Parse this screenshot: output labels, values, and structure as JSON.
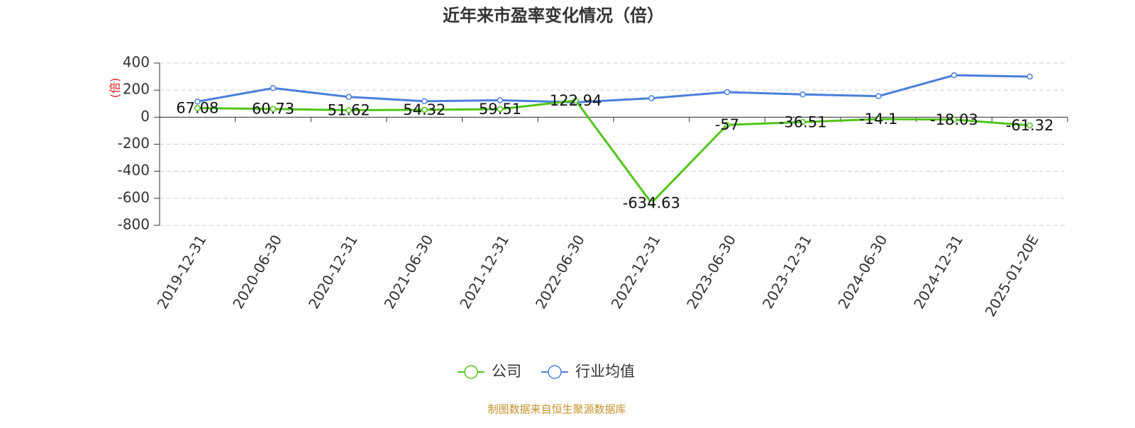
{
  "chart_data": {
    "type": "line",
    "title": "近年来市盈率变化情况（倍）",
    "y_label": "(倍)",
    "categories": [
      "2019-12-31",
      "2020-06-30",
      "2020-12-31",
      "2021-06-30",
      "2021-12-31",
      "2022-06-30",
      "2022-12-31",
      "2023-06-30",
      "2023-12-31",
      "2024-06-30",
      "2024-12-31",
      "2025-01-20E"
    ],
    "series": [
      {
        "name": "公司",
        "color": "#52c41a",
        "values": [
          67.08,
          60.73,
          51.62,
          54.32,
          59.51,
          122.94,
          -634.63,
          -57,
          -36.51,
          -14.1,
          -18.03,
          -61.32
        ],
        "show_labels": true
      },
      {
        "name": "行业均值",
        "color": "#4a7fdc",
        "values": [
          115,
          215,
          150,
          118,
          125,
          110,
          140,
          185,
          168,
          155,
          310,
          300
        ],
        "show_labels": false
      }
    ],
    "ylim": [
      -800,
      400
    ],
    "yticks": [
      -800,
      -600,
      -400,
      -200,
      0,
      200,
      400
    ],
    "grid": true,
    "source": "制图数据来自恒生聚源数据库"
  }
}
